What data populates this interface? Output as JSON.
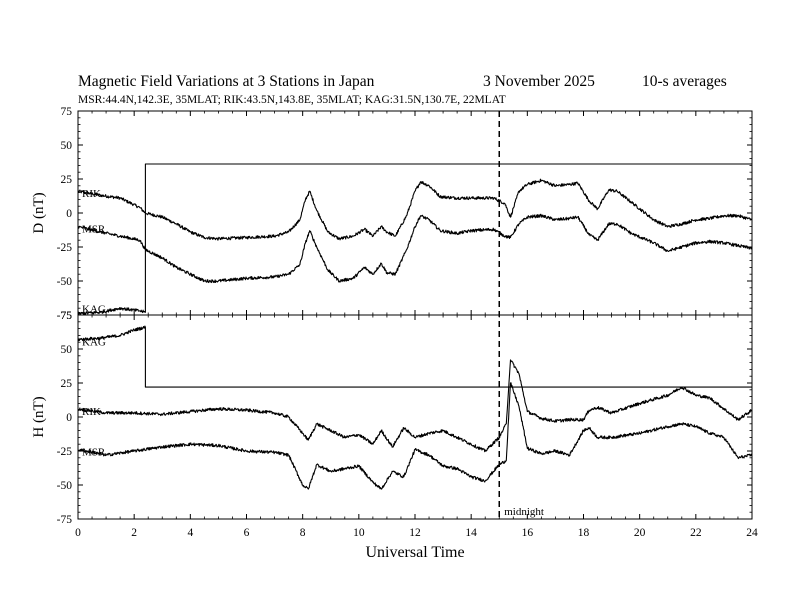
{
  "chart_data": {
    "type": "line",
    "title": "Magnetic Field Variations at 3 Stations in Japan",
    "date": "3   November 2025",
    "averaging": "10-s averages",
    "subtitle": "MSR:44.4N,142.3E, 35MLAT;  RIK:43.5N,143.8E, 35MLAT;  KAG:31.5N,130.7E, 22MLAT",
    "xlabel": "Universal Time",
    "xlim": [
      0,
      24
    ],
    "xticks": [
      "0",
      "2",
      "4",
      "6",
      "8",
      "10",
      "12",
      "14",
      "16",
      "18",
      "20",
      "22",
      "24"
    ],
    "annotation": {
      "text": "midnight",
      "x": 15
    },
    "panels": [
      {
        "id": "D",
        "ylabel": "D (nT)",
        "ylim": [
          -75,
          75
        ],
        "yticks": [
          "75",
          "50",
          "25",
          "0",
          "-25",
          "-50",
          "-75"
        ],
        "series": [
          {
            "name": "RIK",
            "x": [
              0,
              0.8,
              1.5,
              2.2,
              2.4,
              3,
              3.5,
              4,
              4.5,
              5,
              6,
              7,
              7.5,
              7.9,
              8.1,
              8.25,
              8.5,
              8.9,
              9.3,
              9.8,
              10.2,
              10.5,
              10.8,
              11,
              11.3,
              11.7,
              12,
              12.2,
              12.5,
              12.9,
              13.5,
              14,
              14.8,
              15.2,
              15.4,
              15.7,
              16,
              16.5,
              17,
              17.5,
              17.8,
              18.2,
              18.5,
              18.9,
              19.2,
              19.7,
              20.5,
              21,
              21.5,
              22,
              22.5,
              23,
              23.5,
              24
            ],
            "values": [
              16,
              13,
              11,
              4,
              0,
              -3,
              -8,
              -14,
              -18,
              -19,
              -18,
              -17,
              -14,
              -5,
              10,
              16,
              2,
              -14,
              -19,
              -17,
              -12,
              -17,
              -10,
              -14,
              -17,
              -2,
              16,
              23,
              20,
              12,
              11,
              11,
              11,
              7,
              -3,
              16,
              21,
              24,
              20,
              21,
              22,
              9,
              3,
              17,
              16,
              8,
              -5,
              -10,
              -8,
              -5,
              -4,
              -2,
              -2,
              -5
            ]
          },
          {
            "name": "MSR",
            "x": [
              0,
              0.8,
              1.5,
              2.2,
              2.4,
              3,
              3.5,
              4,
              4.5,
              5,
              6,
              7,
              7.5,
              7.9,
              8.1,
              8.25,
              8.5,
              8.9,
              9.3,
              9.8,
              10.2,
              10.5,
              10.8,
              11,
              11.3,
              11.7,
              12,
              12.2,
              12.5,
              12.9,
              13.5,
              14,
              14.8,
              15.2,
              15.4,
              15.7,
              16,
              16.5,
              17,
              17.5,
              17.8,
              18.2,
              18.5,
              18.9,
              19.2,
              19.7,
              20.5,
              21,
              21.5,
              22,
              22.5,
              23,
              23.5,
              24
            ],
            "values": [
              -10,
              -14,
              -17,
              -20,
              -27,
              -33,
              -40,
              -45,
              -50,
              -50,
              -48,
              -47,
              -45,
              -38,
              -22,
              -13,
              -25,
              -42,
              -50,
              -48,
              -40,
              -45,
              -37,
              -44,
              -45,
              -27,
              -10,
              -2,
              -5,
              -13,
              -15,
              -13,
              -12,
              -17,
              -18,
              -8,
              -3,
              -2,
              -5,
              -4,
              -3,
              -16,
              -20,
              -8,
              -8,
              -15,
              -22,
              -28,
              -25,
              -22,
              -21,
              -22,
              -24,
              -26
            ]
          },
          {
            "name": "KAG",
            "x": [
              0,
              0.8,
              1.5,
              2.2,
              2.4,
              2.4,
              24
            ],
            "values": [
              -74,
              -73,
              -70,
              -72,
              -73,
              36,
              36
            ]
          }
        ]
      },
      {
        "id": "H",
        "ylabel": "H (nT)",
        "ylim": [
          -75,
          75
        ],
        "yticks": [
          "75",
          "50",
          "25",
          "0",
          "-25",
          "-50",
          "-75"
        ],
        "series": [
          {
            "name": "KAG",
            "x": [
              0,
              0.8,
              1.5,
              2.0,
              2.4,
              2.4,
              24
            ],
            "values": [
              57,
              58,
              60,
              64,
              66,
              22,
              22
            ]
          },
          {
            "name": "RIK",
            "x": [
              0,
              1,
              2,
              3,
              4,
              5,
              6,
              7,
              7.5,
              8,
              8.2,
              8.5,
              9,
              9.5,
              10,
              10.5,
              10.8,
              11.2,
              11.6,
              12,
              12.5,
              13,
              13.5,
              14,
              14.5,
              15,
              15.25,
              15.4,
              15.7,
              16,
              16.5,
              17,
              17.5,
              18,
              18.2,
              18.5,
              19,
              20,
              21,
              21.5,
              22,
              22.5,
              23,
              23.5,
              24
            ],
            "values": [
              6,
              3,
              3,
              2,
              4,
              6,
              5,
              3,
              0,
              -12,
              -17,
              -5,
              -10,
              -15,
              -13,
              -20,
              -10,
              -22,
              -8,
              -15,
              -12,
              -10,
              -15,
              -20,
              -25,
              -15,
              -5,
              42,
              32,
              4,
              -1,
              -3,
              -2,
              -2,
              5,
              7,
              3,
              10,
              16,
              22,
              16,
              14,
              6,
              -2,
              5
            ]
          },
          {
            "name": "MSR",
            "x": [
              0,
              1,
              2,
              3,
              4,
              5,
              6,
              7,
              7.5,
              8,
              8.2,
              8.5,
              9,
              9.5,
              10,
              10.5,
              10.8,
              11.2,
              11.6,
              12,
              12.5,
              13,
              13.5,
              14,
              14.5,
              15,
              15.25,
              15.4,
              15.7,
              16,
              16.5,
              17,
              17.5,
              18,
              18.2,
              18.5,
              19,
              20,
              21,
              21.5,
              22,
              22.5,
              23,
              23.5,
              24
            ],
            "values": [
              -24,
              -28,
              -25,
              -22,
              -20,
              -21,
              -25,
              -26,
              -28,
              -50,
              -53,
              -35,
              -40,
              -38,
              -36,
              -48,
              -53,
              -40,
              -44,
              -24,
              -28,
              -36,
              -38,
              -44,
              -47,
              -35,
              -32,
              25,
              8,
              -23,
              -27,
              -25,
              -28,
              -10,
              -8,
              -15,
              -15,
              -12,
              -7,
              -5,
              -7,
              -12,
              -15,
              -30,
              -28
            ]
          }
        ]
      }
    ]
  }
}
